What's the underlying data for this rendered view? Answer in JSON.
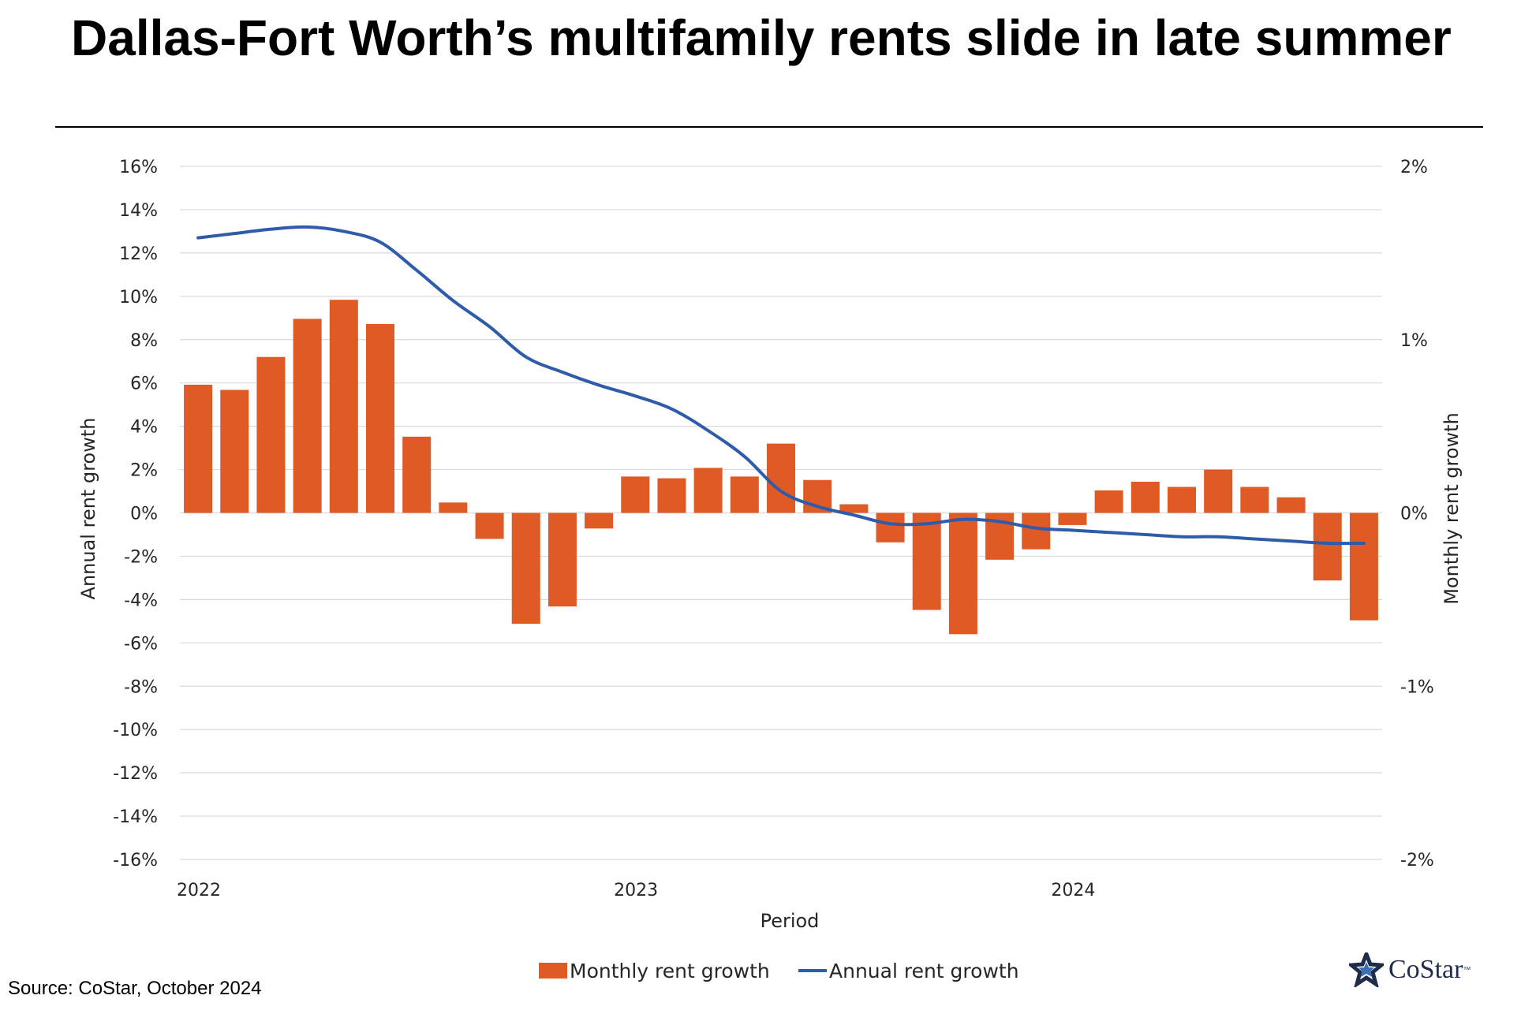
{
  "page": {
    "source": "Source: CoStar, October 2024",
    "logo_text": "CoStar",
    "logo_tm": "™",
    "logo_icon": "costar-star-icon"
  },
  "chart_data": {
    "type": "bar",
    "title": "Dallas-Fort Worth’s multifamily rents slide in late summer",
    "xlabel": "Period",
    "ylabel_left": "Annual rent growth",
    "ylabel_right": "Monthly rent growth",
    "left_axis": {
      "min": -16,
      "max": 16,
      "step": 2,
      "ticks": [
        "16%",
        "14%",
        "12%",
        "10%",
        "8%",
        "6%",
        "4%",
        "2%",
        "0%",
        "-2%",
        "-4%",
        "-6%",
        "-8%",
        "-10%",
        "-12%",
        "-14%",
        "-16%"
      ]
    },
    "right_axis": {
      "min": -2,
      "max": 2,
      "step": 1,
      "ticks": [
        "2%",
        "1%",
        "0%",
        "-1%",
        "-2%"
      ]
    },
    "x_ticks": [
      {
        "label": "2022",
        "index": 0
      },
      {
        "label": "2023",
        "index": 12
      },
      {
        "label": "2024",
        "index": 24
      }
    ],
    "grid": true,
    "legend_position": "bottom",
    "colors": {
      "bar": "#e05a26",
      "line": "#2e5caa",
      "grid": "#d9d9d9"
    },
    "series": [
      {
        "name": "Monthly rent growth",
        "type": "bar",
        "axis": "right",
        "values": [
          0.74,
          0.71,
          0.9,
          1.12,
          1.23,
          1.09,
          0.44,
          0.06,
          -0.15,
          -0.64,
          -0.54,
          -0.09,
          0.21,
          0.2,
          0.26,
          0.21,
          0.4,
          0.19,
          0.05,
          -0.17,
          -0.56,
          -0.7,
          -0.27,
          -0.21,
          -0.07,
          0.13,
          0.18,
          0.15,
          0.25,
          0.15,
          0.09,
          -0.39,
          -0.62
        ]
      },
      {
        "name": "Annual rent growth",
        "type": "line",
        "axis": "left",
        "values": [
          12.7,
          12.9,
          13.1,
          13.2,
          13.0,
          12.5,
          11.2,
          9.8,
          8.6,
          7.2,
          6.5,
          5.9,
          5.4,
          4.8,
          3.8,
          2.6,
          1.0,
          0.3,
          -0.1,
          -0.5,
          -0.5,
          -0.3,
          -0.4,
          -0.7,
          -0.8,
          -0.9,
          -1.0,
          -1.1,
          -1.1,
          -1.2,
          -1.3,
          -1.4,
          -1.4
        ]
      }
    ]
  }
}
